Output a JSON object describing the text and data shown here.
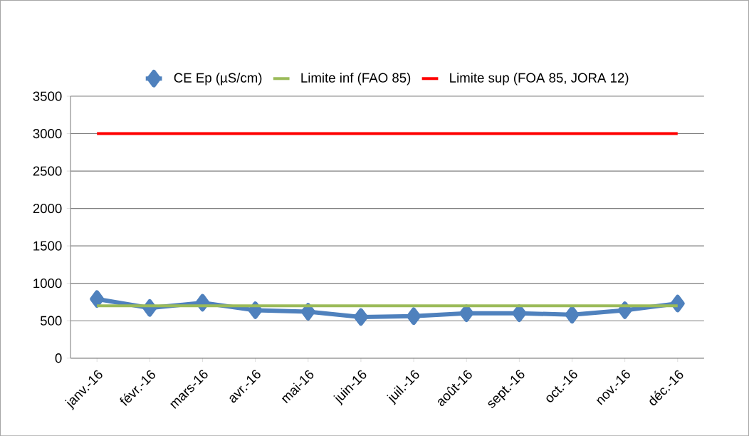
{
  "chart_data": {
    "type": "line",
    "categories": [
      "janv.-16",
      "févr.-16",
      "mars-16",
      "avr.-16",
      "mai-16",
      "juin-16",
      "juil.-16",
      "août-16",
      "sept.-16",
      "oct.-16",
      "nov.-16",
      "déc.-16"
    ],
    "series": [
      {
        "name": "CE Ep (µS/cm)",
        "color": "#4f81bd",
        "marker": "diamond",
        "values": [
          790,
          670,
          740,
          640,
          620,
          550,
          560,
          600,
          600,
          580,
          640,
          730
        ]
      },
      {
        "name": "Limite inf (FAO 85)",
        "color": "#9bbb59",
        "marker": "none",
        "values": [
          700,
          700,
          700,
          700,
          700,
          700,
          700,
          700,
          700,
          700,
          700,
          700
        ]
      },
      {
        "name": "Limite sup (FOA 85, JORA 12)",
        "color": "#ff0000",
        "marker": "none",
        "values": [
          3000,
          3000,
          3000,
          3000,
          3000,
          3000,
          3000,
          3000,
          3000,
          3000,
          3000,
          3000
        ]
      }
    ],
    "ylim": [
      0,
      3500
    ],
    "yticks": [
      0,
      500,
      1000,
      1500,
      2000,
      2500,
      3000,
      3500
    ],
    "grid": "y",
    "legend": "top",
    "line_style": "solid"
  }
}
